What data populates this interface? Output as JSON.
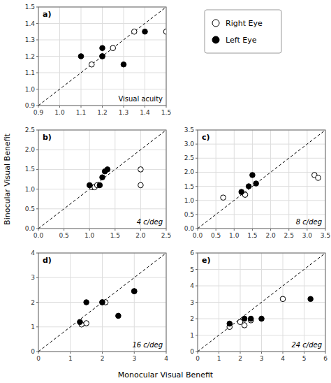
{
  "chart_data": [
    {
      "type": "scatter",
      "title": "a)",
      "annotation": "Visual acuity",
      "xlabel": "Monocular Visual Benefit",
      "ylabel": "Binocular Visual Benefit",
      "legend": "right",
      "grid": true,
      "series": [
        {
          "name": "Right Eye",
          "color": "white",
          "marker": "circle",
          "x": [
            1.15,
            1.2,
            1.25,
            1.35,
            1.5
          ],
          "values": [
            1.15,
            1.2,
            1.25,
            1.35,
            1.35
          ]
        },
        {
          "name": "Left Eye",
          "color": "black",
          "marker": "circle",
          "x": [
            1.1,
            1.2,
            1.2,
            1.3,
            1.4
          ],
          "values": [
            1.2,
            1.25,
            1.2,
            1.15,
            1.35
          ]
        }
      ],
      "xlim": [
        0.9,
        1.5
      ],
      "ylim": [
        0.9,
        1.5
      ],
      "xticks": [
        0.9,
        {
          "value": 1.0,
          "label": "1.0"
        },
        1.1,
        1.2,
        1.3,
        1.4,
        1.5
      ],
      "yticks": [
        0.9,
        {
          "value": 1.0,
          "label": "1.0"
        },
        1.1,
        1.2,
        1.3,
        1.4,
        1.5
      ]
    },
    {
      "type": "scatter",
      "title": "b)",
      "annotation": "4 c/deg",
      "grid": true,
      "series": [
        {
          "name": "Right Eye",
          "color": "white",
          "marker": "circle",
          "x": [
            1.05,
            1.1,
            1.15,
            2.0,
            2.0
          ],
          "values": [
            1.05,
            1.05,
            1.1,
            1.5,
            1.1
          ]
        },
        {
          "name": "Left Eye",
          "color": "black",
          "marker": "circle",
          "x": [
            1.0,
            1.2,
            1.25,
            1.3,
            1.35
          ],
          "values": [
            1.1,
            1.1,
            1.3,
            1.45,
            1.5
          ]
        }
      ],
      "xlim": [
        0,
        2.5
      ],
      "ylim": [
        0,
        2.5
      ],
      "xticks": [
        {
          "value": 0,
          "label": "0.0"
        },
        0.5,
        {
          "value": 1.0,
          "label": "1.0"
        },
        1.5,
        {
          "value": 2.0,
          "label": "2.0"
        },
        2.5
      ],
      "yticks": [
        {
          "value": 0,
          "label": "0.0"
        },
        0.5,
        {
          "value": 1.0,
          "label": "1.0"
        },
        1.5,
        {
          "value": 2.0,
          "label": "2.0"
        },
        2.5
      ]
    },
    {
      "type": "scatter",
      "title": "c)",
      "annotation": "8 c/deg",
      "grid": true,
      "series": [
        {
          "name": "Right Eye",
          "color": "white",
          "marker": "circle",
          "x": [
            0.7,
            1.3,
            3.2,
            3.3
          ],
          "values": [
            1.1,
            1.2,
            1.9,
            1.8
          ]
        },
        {
          "name": "Left Eye",
          "color": "black",
          "marker": "circle",
          "x": [
            1.2,
            1.4,
            1.5,
            1.6
          ],
          "values": [
            1.3,
            1.5,
            1.9,
            1.6
          ]
        }
      ],
      "xlim": [
        0,
        3.5
      ],
      "ylim": [
        0,
        3.5
      ],
      "xticks": [
        {
          "value": 0,
          "label": "0.0"
        },
        0.5,
        {
          "value": 1.0,
          "label": "1.0"
        },
        1.5,
        {
          "value": 2.0,
          "label": "2.0"
        },
        2.5,
        {
          "value": 3.0,
          "label": "3.0"
        },
        3.5
      ],
      "yticks": [
        {
          "value": 0,
          "label": "0.0"
        },
        0.5,
        {
          "value": 1.0,
          "label": "1.0"
        },
        1.5,
        {
          "value": 2.0,
          "label": "2.0"
        },
        2.5,
        {
          "value": 3.0,
          "label": "3.0"
        },
        3.5
      ]
    },
    {
      "type": "scatter",
      "title": "d)",
      "annotation": "16 c/deg",
      "grid": true,
      "series": [
        {
          "name": "Right Eye",
          "color": "white",
          "marker": "circle",
          "x": [
            1.35,
            1.5,
            2.0,
            2.1,
            3.0
          ],
          "values": [
            1.1,
            1.15,
            2.0,
            2.0,
            2.45
          ]
        },
        {
          "name": "Left Eye",
          "color": "black",
          "marker": "circle",
          "x": [
            1.3,
            1.5,
            2.0,
            2.5,
            3.0
          ],
          "values": [
            1.2,
            2.0,
            2.0,
            1.45,
            2.45
          ]
        }
      ],
      "xlim": [
        0,
        4
      ],
      "ylim": [
        0,
        4
      ],
      "xticks": [
        0,
        1,
        2,
        3,
        4
      ],
      "yticks": [
        0,
        1,
        2,
        3,
        4
      ]
    },
    {
      "type": "scatter",
      "title": "e)",
      "annotation": "24 c/deg",
      "grid": true,
      "series": [
        {
          "name": "Right Eye",
          "color": "white",
          "marker": "circle",
          "x": [
            1.5,
            2.0,
            2.2,
            2.5,
            4.0
          ],
          "values": [
            1.5,
            1.8,
            1.6,
            1.9,
            3.2
          ]
        },
        {
          "name": "Left Eye",
          "color": "black",
          "marker": "circle",
          "x": [
            1.5,
            2.2,
            2.5,
            3.0,
            5.3
          ],
          "values": [
            1.7,
            2.0,
            2.0,
            2.0,
            3.2
          ]
        }
      ],
      "xlim": [
        0,
        6
      ],
      "ylim": [
        0,
        6
      ],
      "xticks": [
        0,
        1,
        2,
        3,
        4,
        5,
        6
      ],
      "yticks": [
        0,
        1,
        2,
        3,
        4,
        5,
        6
      ]
    }
  ]
}
